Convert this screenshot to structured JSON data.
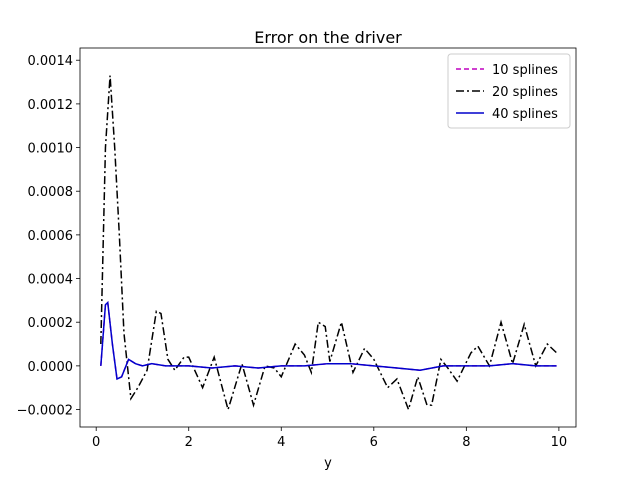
{
  "chart_data": {
    "type": "line",
    "title": "Error on the  driver",
    "x_label": "y",
    "xlim": [
      -0.35,
      10.37
    ],
    "ylim": [
      -0.00028,
      0.001456
    ],
    "xticks": [
      0,
      2,
      4,
      6,
      8,
      10
    ],
    "yticks": [
      {
        "value": -0.0002,
        "label": "−0.0002"
      },
      {
        "value": 0,
        "label": "0.0000"
      },
      {
        "value": 0.0002,
        "label": "0.0002"
      },
      {
        "value": 0.0004,
        "label": "0.0004"
      },
      {
        "value": 0.0006,
        "label": "0.0006"
      },
      {
        "value": 0.0008,
        "label": "0.0008"
      },
      {
        "value": 0.001,
        "label": "0.0010"
      },
      {
        "value": 0.0012,
        "label": "0.0012"
      },
      {
        "value": 0.0014,
        "label": "0.0014"
      }
    ],
    "legend": "upper right",
    "grid": false,
    "series": [
      {
        "name": "10 splines",
        "color": "#bf00bf",
        "dash": "5 3",
        "x": [
          0.1,
          0.2,
          0.25,
          0.35,
          0.45,
          0.55,
          0.7,
          0.85,
          1.0,
          1.2,
          1.5,
          2.0,
          2.5,
          3.0,
          3.5,
          4.0,
          4.5,
          5.0,
          5.5,
          6.0,
          6.5,
          7.0,
          7.5,
          8.0,
          8.5,
          9.0,
          9.5,
          9.95
        ],
        "values": [
          0,
          0.00028,
          0.00029,
          0.0001,
          -6e-05,
          -5e-05,
          3e-05,
          1e-05,
          0,
          1e-05,
          0,
          0,
          -1e-05,
          0,
          -1e-05,
          0,
          0,
          1e-05,
          1e-05,
          0,
          -1e-05,
          -2e-05,
          0,
          0,
          0,
          1e-05,
          0,
          0
        ]
      },
      {
        "name": "20 splines",
        "color": "#000000",
        "dash": "8 3 2 3",
        "x": [
          0.1,
          0.2,
          0.3,
          0.4,
          0.5,
          0.6,
          0.75,
          0.9,
          1.1,
          1.3,
          1.4,
          1.55,
          1.7,
          1.9,
          2.0,
          2.3,
          2.55,
          2.85,
          3.15,
          3.4,
          3.65,
          3.85,
          4.0,
          4.3,
          4.5,
          4.65,
          4.8,
          4.95,
          5.05,
          5.3,
          5.55,
          5.8,
          6.0,
          6.3,
          6.5,
          6.75,
          6.95,
          7.15,
          7.25,
          7.45,
          7.6,
          7.8,
          8.1,
          8.25,
          8.5,
          8.75,
          9.0,
          9.25,
          9.5,
          9.75,
          9.95
        ],
        "values": [
          0.0001,
          0.001,
          0.00133,
          0.001,
          0.0006,
          0.00015,
          -0.00015,
          -0.0001,
          -2e-05,
          0.00025,
          0.00024,
          3e-05,
          -2e-05,
          4e-05,
          4e-05,
          -0.0001,
          4e-05,
          -0.0002,
          1e-05,
          -0.00018,
          0,
          -1e-05,
          -5e-05,
          0.0001,
          5e-05,
          -3e-05,
          0.0002,
          0.00018,
          2e-05,
          0.0002,
          -3e-05,
          8e-05,
          3e-05,
          -0.0001,
          -6e-05,
          -0.0002,
          -5e-05,
          -0.00018,
          -0.00018,
          3e-05,
          -1e-05,
          -7e-05,
          6e-05,
          9e-05,
          0,
          0.0002,
          1e-05,
          0.00019,
          0,
          0.0001,
          6e-05
        ]
      },
      {
        "name": "40 splines",
        "color": "#0000cc",
        "dash": "",
        "x": [
          0.1,
          0.2,
          0.25,
          0.35,
          0.45,
          0.55,
          0.7,
          0.85,
          1.0,
          1.2,
          1.5,
          2.0,
          2.5,
          3.0,
          3.5,
          4.0,
          4.5,
          5.0,
          5.5,
          6.0,
          6.5,
          7.0,
          7.5,
          8.0,
          8.5,
          9.0,
          9.5,
          9.95
        ],
        "values": [
          0,
          0.00028,
          0.00029,
          0.0001,
          -6e-05,
          -5e-05,
          3e-05,
          1e-05,
          0,
          1e-05,
          0,
          0,
          -1e-05,
          0,
          -1e-05,
          0,
          0,
          1e-05,
          1e-05,
          0,
          -1e-05,
          -2e-05,
          0,
          0,
          0,
          1e-05,
          0,
          0
        ]
      }
    ]
  }
}
